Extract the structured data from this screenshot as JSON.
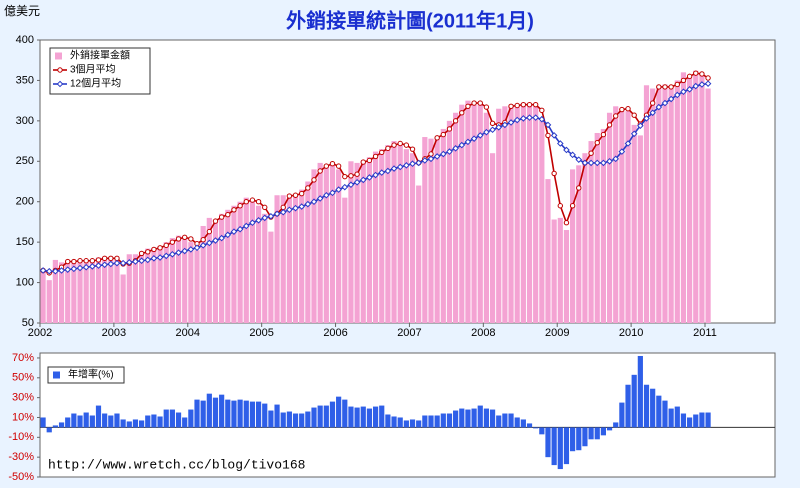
{
  "chart_data": [
    {
      "type": "bar",
      "title": "外銷接單統計圖(2011年1月)",
      "y_label": "億美元",
      "categories": [
        "2002",
        null,
        null,
        null,
        null,
        null,
        null,
        null,
        null,
        null,
        null,
        null,
        "2003",
        null,
        null,
        null,
        null,
        null,
        null,
        null,
        null,
        null,
        null,
        null,
        "2004",
        null,
        null,
        null,
        null,
        null,
        null,
        null,
        null,
        null,
        null,
        null,
        "2005",
        null,
        null,
        null,
        null,
        null,
        null,
        null,
        null,
        null,
        null,
        null,
        "2006",
        null,
        null,
        null,
        null,
        null,
        null,
        null,
        null,
        null,
        null,
        null,
        "2007",
        null,
        null,
        null,
        null,
        null,
        null,
        null,
        null,
        null,
        null,
        null,
        "2008",
        null,
        null,
        null,
        null,
        null,
        null,
        null,
        null,
        null,
        null,
        null,
        "2009",
        null,
        null,
        null,
        null,
        null,
        null,
        null,
        null,
        null,
        null,
        null,
        "2010",
        null,
        null,
        null,
        null,
        null,
        null,
        null,
        null,
        null,
        null,
        null,
        "2011"
      ],
      "ylim": [
        50,
        400
      ],
      "yticks": [
        50,
        100,
        150,
        200,
        250,
        300,
        350,
        400
      ],
      "series": [
        {
          "name": "外銷接單金額",
          "type": "bar",
          "color": "#f4a3d3",
          "values": [
            115,
            103,
            128,
            125,
            125,
            127,
            128,
            125,
            128,
            131,
            130,
            130,
            128,
            110,
            135,
            135,
            138,
            142,
            143,
            145,
            150,
            155,
            158,
            155,
            150,
            140,
            170,
            180,
            178,
            185,
            190,
            195,
            200,
            205,
            200,
            195,
            185,
            163,
            208,
            208,
            205,
            210,
            215,
            225,
            240,
            248,
            245,
            248,
            240,
            205,
            250,
            248,
            250,
            255,
            262,
            265,
            270,
            275,
            270,
            265,
            260,
            220,
            280,
            278,
            280,
            290,
            300,
            310,
            320,
            325,
            320,
            322,
            310,
            260,
            315,
            318,
            320,
            318,
            322,
            320,
            318,
            300,
            228,
            178,
            180,
            165,
            240,
            245,
            260,
            275,
            285,
            290,
            310,
            318,
            315,
            312,
            295,
            282,
            344,
            340,
            342,
            345,
            340,
            350,
            360,
            355,
            362,
            358,
            340
          ]
        },
        {
          "name": "3個月平均",
          "type": "line",
          "marker": "circle",
          "color": "#c00000",
          "values": [
            115,
            112,
            115,
            119,
            126,
            126,
            127,
            127,
            127,
            128,
            130,
            130,
            130,
            123,
            124,
            127,
            136,
            138,
            141,
            143,
            146,
            150,
            154,
            156,
            154,
            148,
            153,
            163,
            176,
            181,
            184,
            190,
            195,
            200,
            202,
            200,
            193,
            181,
            185,
            193,
            207,
            208,
            210,
            217,
            227,
            238,
            244,
            247,
            244,
            231,
            232,
            234,
            249,
            251,
            256,
            261,
            266,
            270,
            272,
            270,
            265,
            248,
            253,
            259,
            279,
            283,
            290,
            300,
            310,
            318,
            322,
            322,
            317,
            297,
            295,
            298,
            318,
            319,
            320,
            320,
            320,
            313,
            282,
            235,
            195,
            174,
            195,
            217,
            248,
            260,
            273,
            283,
            295,
            306,
            314,
            315,
            307,
            296,
            307,
            322,
            342,
            342,
            342,
            345,
            350,
            355,
            359,
            358,
            353
          ]
        },
        {
          "name": "12個月平均",
          "type": "line",
          "marker": "diamond",
          "color": "#2a3cc8",
          "values": [
            115,
            114,
            114,
            115,
            116,
            117,
            118,
            119,
            120,
            121,
            122,
            123,
            124,
            124,
            125,
            126,
            127,
            128,
            130,
            131,
            133,
            135,
            137,
            139,
            141,
            143,
            146,
            149,
            152,
            155,
            159,
            163,
            166,
            170,
            174,
            177,
            180,
            182,
            185,
            187,
            190,
            192,
            194,
            197,
            200,
            204,
            208,
            211,
            215,
            218,
            221,
            224,
            227,
            230,
            233,
            236,
            238,
            241,
            243,
            245,
            247,
            248,
            251,
            253,
            256,
            259,
            262,
            266,
            270,
            274,
            278,
            282,
            286,
            289,
            292,
            295,
            298,
            301,
            303,
            304,
            304,
            302,
            295,
            282,
            272,
            264,
            258,
            252,
            248,
            248,
            248,
            248,
            250,
            253,
            262,
            272,
            284,
            294,
            303,
            310,
            317,
            322,
            327,
            332,
            336,
            339,
            343,
            345,
            346
          ]
        }
      ]
    },
    {
      "type": "bar",
      "note": "http://www.wretch.cc/blog/tivo168",
      "ylim": [
        -50,
        75
      ],
      "yticks": [
        {
          "value": 70,
          "label": "70%"
        },
        {
          "value": 50,
          "label": "50%"
        },
        {
          "value": 30,
          "label": "30%"
        },
        {
          "value": 10,
          "label": "10%"
        },
        {
          "value": -10,
          "label": "-10%"
        },
        {
          "value": -30,
          "label": "-30%"
        },
        {
          "value": -50,
          "label": "-50%"
        }
      ],
      "series": [
        {
          "name": "年增率(%)",
          "type": "bar",
          "color": "#2f5fe8",
          "values": [
            10,
            -5,
            2,
            5,
            10,
            14,
            12,
            15,
            12,
            22,
            14,
            12,
            14,
            8,
            6,
            8,
            7,
            12,
            13,
            11,
            18,
            18,
            15,
            10,
            18,
            28,
            27,
            34,
            30,
            33,
            28,
            27,
            28,
            27,
            26,
            26,
            24,
            17,
            23,
            15,
            16,
            14,
            14,
            16,
            20,
            22,
            22,
            26,
            31,
            28,
            21,
            20,
            21,
            19,
            21,
            22,
            13,
            11,
            10,
            7,
            8,
            7,
            12,
            12,
            12,
            14,
            14,
            17,
            19,
            18,
            19,
            22,
            19,
            18,
            12,
            14,
            14,
            10,
            8,
            4,
            -1,
            -7,
            -30,
            -38,
            -42,
            -37,
            -24,
            -23,
            -19,
            -12,
            -12,
            -8,
            -3,
            5,
            25,
            43,
            53,
            72,
            43,
            39,
            32,
            27,
            19,
            21,
            14,
            10,
            13,
            15,
            15
          ]
        }
      ]
    }
  ]
}
